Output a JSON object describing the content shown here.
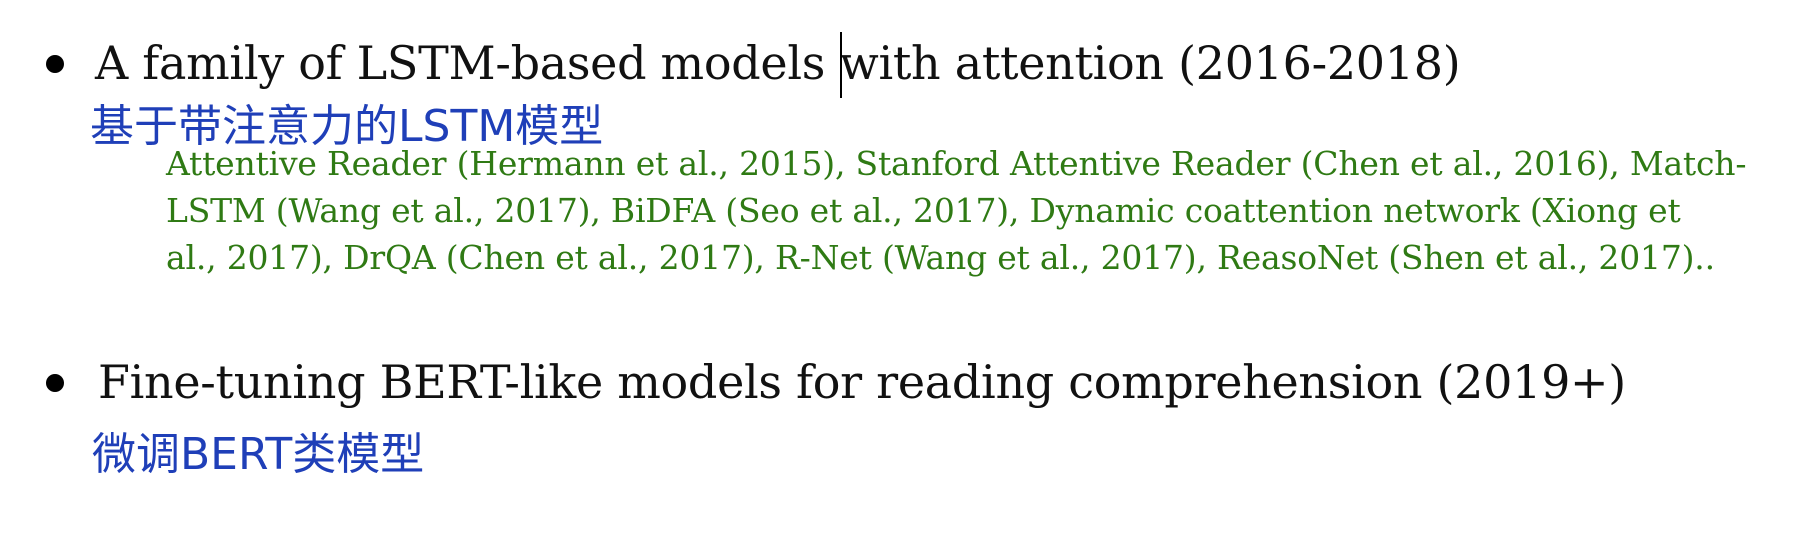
{
  "items": [
    {
      "heading_before_cursor": "A family of LSTM-based models ",
      "heading_after_cursor": "with attention (2016-2018)",
      "translation": "基于带注意力的LSTM模型",
      "references": [
        "Attentive Reader (Hermann et al., 2015), Stanford Attentive Reader (Chen et al., 2016), Match-",
        "LSTM (Wang et al., 2017), BiDFA (Seo et al., 2017), Dynamic coattention network (Xiong et",
        "al., 2017), DrQA (Chen et al., 2017),  R-Net (Wang et al., 2017), ReasoNet (Shen et al., 2017).."
      ]
    },
    {
      "heading": "Fine-tuning BERT-like models for reading comprehension (2019+)",
      "translation": "微调BERT类模型"
    }
  ],
  "colors": {
    "heading": "#111111",
    "translation": "#1f3fb8",
    "references": "#2f7a14"
  }
}
